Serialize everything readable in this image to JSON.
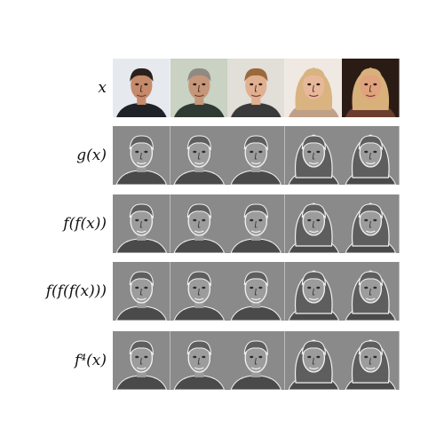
{
  "rows": [
    {
      "label": "x",
      "mode": "color"
    },
    {
      "label": "g(x)",
      "mode": "gray"
    },
    {
      "label": "f(f(x))",
      "mode": "gray"
    },
    {
      "label": "f(f(f(x)))",
      "mode": "gray"
    },
    {
      "label": "f⁴(x)",
      "mode": "gray"
    }
  ],
  "faces": [
    {
      "name": "man-dark-hair-suit",
      "bg": "#e6e9ee",
      "skin": "#c48a6a",
      "hair": "#2a211c",
      "cloth": "#1f2226"
    },
    {
      "name": "older-man-gray-hair",
      "bg": "#c9d2c3",
      "skin": "#c6967a",
      "hair": "#8e8a84",
      "cloth": "#2e3a33"
    },
    {
      "name": "young-man-blond-hair",
      "bg": "#e2ded8",
      "skin": "#e0b090",
      "hair": "#9a6a3c",
      "cloth": "#3b3a3a"
    },
    {
      "name": "woman-blonde-hair",
      "bg": "#f0e8e2",
      "skin": "#e7b99a",
      "hair": "#d9b380",
      "cloth": "#c0a088"
    },
    {
      "name": "older-woman-blonde-curls",
      "bg": "#2a1c14",
      "skin": "#e0a37e",
      "hair": "#d8b07a",
      "cloth": "#6a3d2e"
    }
  ]
}
